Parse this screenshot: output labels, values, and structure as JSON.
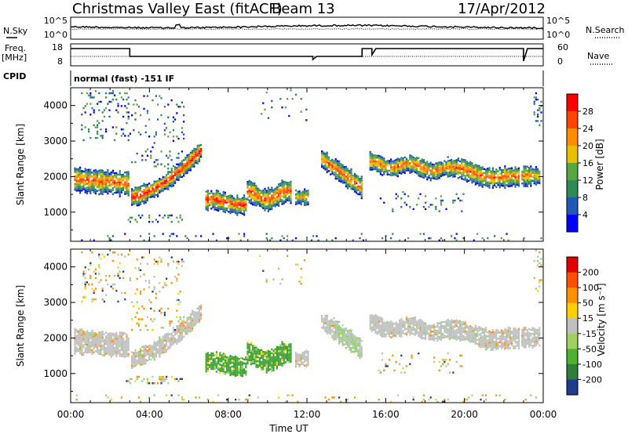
{
  "header": {
    "station_title": "Christmas Valley East (fitACF)",
    "beam": "Beam 13",
    "date": "17/Apr/2012"
  },
  "panels": {
    "nsky_label": "N.Sky",
    "nsky_ticks": [
      "10^5",
      "10^0"
    ],
    "nsearch_label": "N.Search",
    "nsearch_ticks": [
      "10^5",
      "10^0"
    ],
    "freq_label": [
      "Freq.",
      "[MHz]"
    ],
    "freq_ticks": [
      "18",
      "8"
    ],
    "nave_label": "Nave",
    "nave_ticks": [
      "60",
      "0"
    ],
    "cpid_label": "CPID",
    "cpid_value": "normal (fast) -151 IF"
  },
  "chart_data": [
    {
      "type": "heatmap",
      "name": "power",
      "ylabel": "Slant Range [km]",
      "xlabel": "Time UT",
      "x_ticks": [
        "00:00",
        "04:00",
        "08:00",
        "12:00",
        "16:00",
        "20:00",
        "00:00"
      ],
      "y_ticks": [
        1000,
        2000,
        3000,
        4000
      ],
      "ylim": [
        180,
        4500
      ],
      "xlim_hours": [
        0,
        24
      ],
      "colorbar": {
        "label": "Power [dB]",
        "ticks": [
          4,
          8,
          12,
          16,
          20,
          24,
          28
        ],
        "colors": [
          "#0000ff",
          "#1e5ab4",
          "#2f8a55",
          "#57a640",
          "#e8c000",
          "#ff8c00",
          "#ff4500",
          "#ff0000"
        ]
      }
    },
    {
      "type": "heatmap",
      "name": "velocity",
      "ylabel": "Slant Range [km]",
      "xlabel": "Time UT",
      "x_ticks": [
        "00:00",
        "04:00",
        "08:00",
        "12:00",
        "16:00",
        "20:00",
        "00:00"
      ],
      "y_ticks": [
        1000,
        2000,
        3000,
        4000
      ],
      "ylim": [
        180,
        4500
      ],
      "xlim_hours": [
        0,
        24
      ],
      "colorbar": {
        "label": "Velocity [m s⁻¹]",
        "ticks": [
          "200",
          "100",
          "50",
          "15",
          "-15",
          "-50",
          "-100",
          "-200"
        ],
        "colors": [
          "#1f3c8c",
          "#2e7d3a",
          "#50b030",
          "#a0d060",
          "#c0c0c0",
          "#ffd000",
          "#ff9000",
          "#ff5000",
          "#e00000"
        ]
      }
    }
  ],
  "x_axis_title": "Time UT"
}
